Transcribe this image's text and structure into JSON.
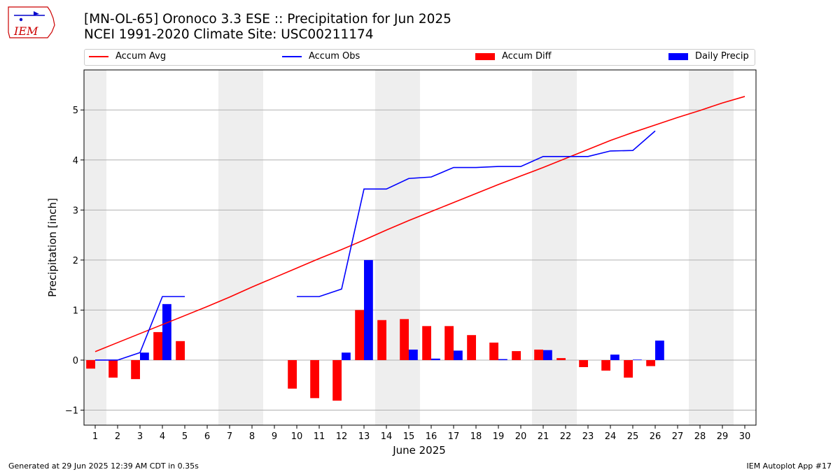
{
  "logo": {
    "text": "IEM",
    "icon": "iowa-state-outline-icon"
  },
  "title_line1": "[MN-OL-65] Oronoco 3.3 ESE :: Precipitation for Jun 2025",
  "title_line2": "NCEI 1991-2020 Climate Site: USC00211174",
  "footer_left": "Generated at 29 Jun 2025 12:39 AM CDT in 0.35s",
  "footer_right": "IEM Autoplot App #17",
  "colors": {
    "avg": "#ff0000",
    "obs": "#0000ff",
    "diff": "#ff0000",
    "daily": "#0000ff",
    "weekend": "#eeeeee",
    "grid": "#b0b0b0"
  },
  "chart_data": {
    "type": "bar",
    "xlabel": "June 2025",
    "ylabel": "Precipitation [inch]",
    "xlim": [
      0.5,
      30.5
    ],
    "ylim": [
      -1.3,
      5.8
    ],
    "x_ticks": [
      1,
      2,
      3,
      4,
      5,
      6,
      7,
      8,
      9,
      10,
      11,
      12,
      13,
      14,
      15,
      16,
      17,
      18,
      19,
      20,
      21,
      22,
      23,
      24,
      25,
      26,
      27,
      28,
      29,
      30
    ],
    "y_ticks": [
      -1,
      0,
      1,
      2,
      3,
      4,
      5
    ],
    "y_tick_labels": [
      "−1",
      "0",
      "1",
      "2",
      "3",
      "4",
      "5"
    ],
    "grid": "horizontal",
    "legend": "top",
    "weekend_days": [
      1,
      7,
      8,
      14,
      15,
      21,
      22,
      28,
      29
    ],
    "series": [
      {
        "name": "Accum Avg",
        "kind": "line",
        "color": "#ff0000",
        "x": [
          1,
          2,
          3,
          4,
          5,
          6,
          7,
          8,
          9,
          10,
          11,
          12,
          13,
          14,
          15,
          16,
          17,
          18,
          19,
          20,
          21,
          22,
          23,
          24,
          25,
          26,
          27,
          28,
          29,
          30
        ],
        "values": [
          0.17,
          0.35,
          0.53,
          0.71,
          0.89,
          1.07,
          1.26,
          1.46,
          1.65,
          1.84,
          2.03,
          2.21,
          2.4,
          2.6,
          2.79,
          2.97,
          3.15,
          3.33,
          3.51,
          3.68,
          3.85,
          4.03,
          4.21,
          4.39,
          4.55,
          4.7,
          4.85,
          4.99,
          5.14,
          5.27
        ]
      },
      {
        "name": "Accum Obs",
        "kind": "line",
        "color": "#0000ff",
        "x": [
          1,
          2,
          3,
          4,
          5,
          6,
          7,
          8,
          9,
          10,
          11,
          12,
          13,
          14,
          15,
          16,
          17,
          18,
          19,
          20,
          21,
          22,
          23,
          24,
          25,
          26
        ],
        "values": [
          0.0,
          0.0,
          0.15,
          1.27,
          1.27,
          null,
          null,
          null,
          null,
          1.27,
          1.27,
          1.42,
          3.42,
          3.42,
          3.63,
          3.66,
          3.85,
          3.85,
          3.87,
          3.87,
          4.07,
          4.07,
          4.07,
          4.18,
          4.19,
          4.58
        ]
      },
      {
        "name": "Accum Diff",
        "kind": "bar",
        "color": "#ff0000",
        "x": [
          1,
          2,
          3,
          4,
          5,
          10,
          11,
          12,
          13,
          14,
          15,
          16,
          17,
          18,
          19,
          20,
          21,
          22,
          23,
          24,
          25,
          26
        ],
        "values": [
          -0.17,
          -0.35,
          -0.38,
          0.56,
          0.38,
          -0.57,
          -0.76,
          -0.81,
          1.0,
          0.8,
          0.82,
          0.68,
          0.68,
          0.5,
          0.35,
          0.18,
          0.21,
          0.04,
          -0.14,
          -0.21,
          -0.35,
          -0.12
        ]
      },
      {
        "name": "Daily Precip",
        "kind": "bar",
        "color": "#0000ff",
        "x": [
          3,
          4,
          12,
          13,
          15,
          16,
          17,
          19,
          21,
          24,
          25,
          26
        ],
        "values": [
          0.15,
          1.12,
          0.15,
          2.0,
          0.21,
          0.03,
          0.19,
          0.02,
          0.2,
          0.11,
          0.01,
          0.39
        ]
      }
    ]
  }
}
